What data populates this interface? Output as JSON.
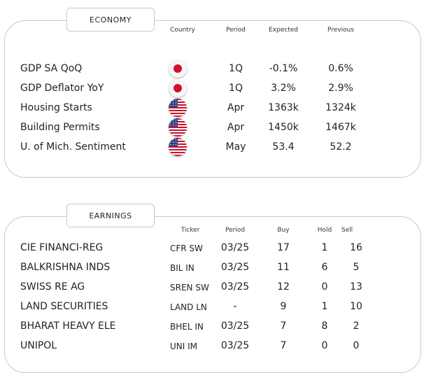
{
  "economy": {
    "title": "ECONOMY",
    "headers": {
      "country": "Country",
      "period": "Period",
      "expected": "Expected",
      "previous": "Previous"
    },
    "rows": [
      {
        "label": "GDP SA QoQ",
        "country": "japan-flag-icon",
        "period": "1Q",
        "expected": "-0.1%",
        "previous": "0.6%"
      },
      {
        "label": "GDP Deflator YoY",
        "country": "japan-flag-icon",
        "period": "1Q",
        "expected": "3.2%",
        "previous": "2.9%"
      },
      {
        "label": "Housing Starts",
        "country": "usa-flag-icon",
        "period": "Apr",
        "expected": "1363k",
        "previous": "1324k"
      },
      {
        "label": "Building Permits",
        "country": "usa-flag-icon",
        "period": "Apr",
        "expected": "1450k",
        "previous": "1467k"
      },
      {
        "label": "U. of Mich. Sentiment",
        "country": "usa-flag-icon",
        "period": "May",
        "expected": "53.4",
        "previous": "52.2"
      }
    ]
  },
  "earnings": {
    "title": "EARNINGS",
    "headers": {
      "ticker": "Ticker",
      "period": "Period",
      "buy": "Buy",
      "hold": "Hold",
      "sell": "Sell"
    },
    "rows": [
      {
        "name": "CIE FINANCI-REG",
        "ticker": "CFR SW",
        "period": "03/25",
        "buy": "17",
        "hold": "1",
        "sell": "16"
      },
      {
        "name": "BALKRISHNA INDS",
        "ticker": "BIL IN",
        "period": "03/25",
        "buy": "11",
        "hold": "6",
        "sell": "5"
      },
      {
        "name": "SWISS RE AG",
        "ticker": "SREN SW",
        "period": "03/25",
        "buy": "12",
        "hold": "0",
        "sell": "13"
      },
      {
        "name": "LAND SECURITIES",
        "ticker": "LAND LN",
        "period": "-",
        "buy": "9",
        "hold": "1",
        "sell": "10"
      },
      {
        "name": "BHARAT HEAVY ELE",
        "ticker": "BHEL IN",
        "period": "03/25",
        "buy": "7",
        "hold": "8",
        "sell": "2"
      },
      {
        "name": "UNIPOL",
        "ticker": "UNI IM",
        "period": "03/25",
        "buy": "7",
        "hold": "0",
        "sell": "0"
      }
    ]
  },
  "colors": {
    "border": "#c9c9c9",
    "japan_red": "#d0112b",
    "usa_red": "#c8102e",
    "usa_blue": "#2b3f86"
  }
}
